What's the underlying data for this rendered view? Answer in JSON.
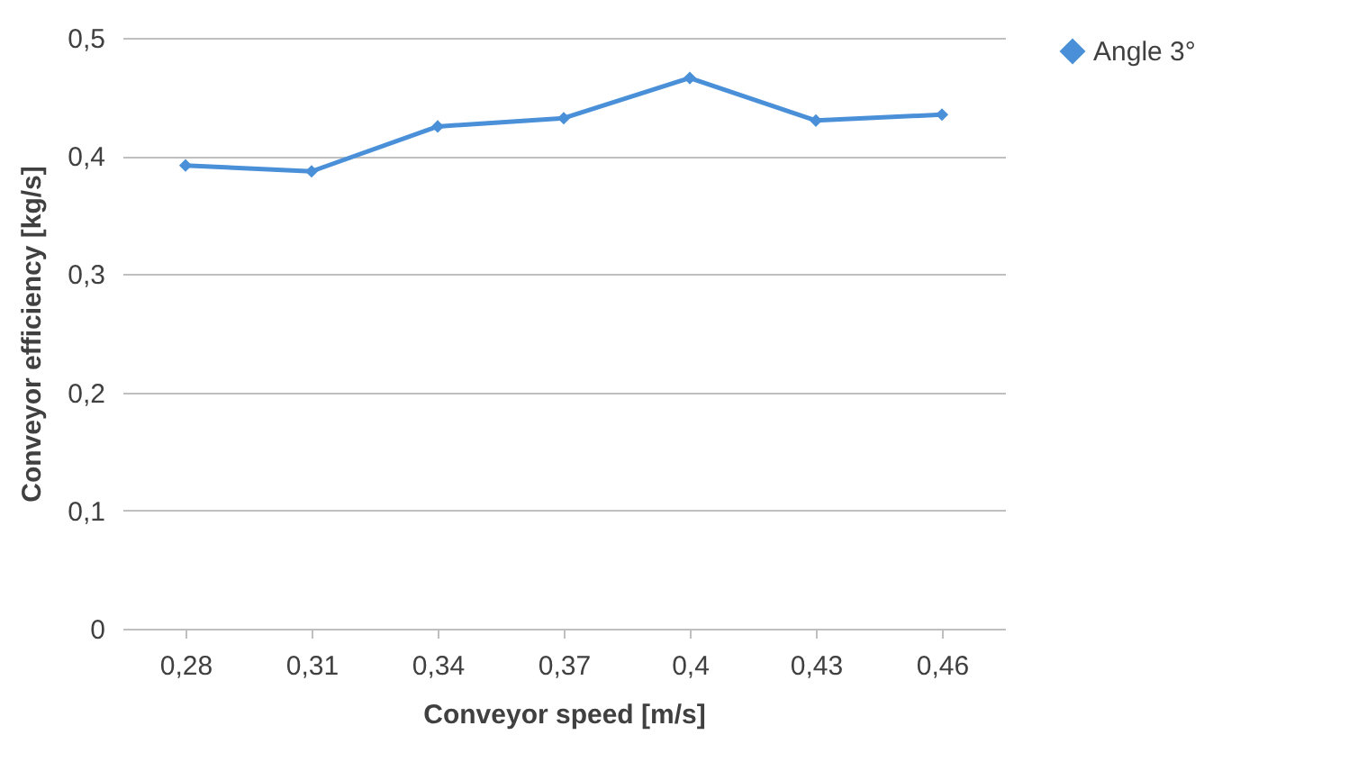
{
  "chart_data": {
    "type": "line",
    "xlabel": "Conveyor speed [m/s]",
    "ylabel": "Conveyor efficiency [kg/s]",
    "categories": [
      "0,28",
      "0,31",
      "0,34",
      "0,37",
      "0,4",
      "0,43",
      "0,46"
    ],
    "series": [
      {
        "name": "Angle 3°",
        "color": "#4a90d9",
        "values": [
          0.392,
          0.387,
          0.425,
          0.432,
          0.466,
          0.43,
          0.435
        ]
      }
    ],
    "ylim": [
      0,
      0.5
    ],
    "yticks": [
      {
        "value": 0,
        "label": "0"
      },
      {
        "value": 0.1,
        "label": "0,1"
      },
      {
        "value": 0.2,
        "label": "0,2"
      },
      {
        "value": 0.3,
        "label": "0,3"
      },
      {
        "value": 0.4,
        "label": "0,4"
      },
      {
        "value": 0.5,
        "label": "0,5"
      }
    ],
    "grid": "y",
    "legend": "right",
    "marker": "diamond",
    "line_style": "solid"
  }
}
